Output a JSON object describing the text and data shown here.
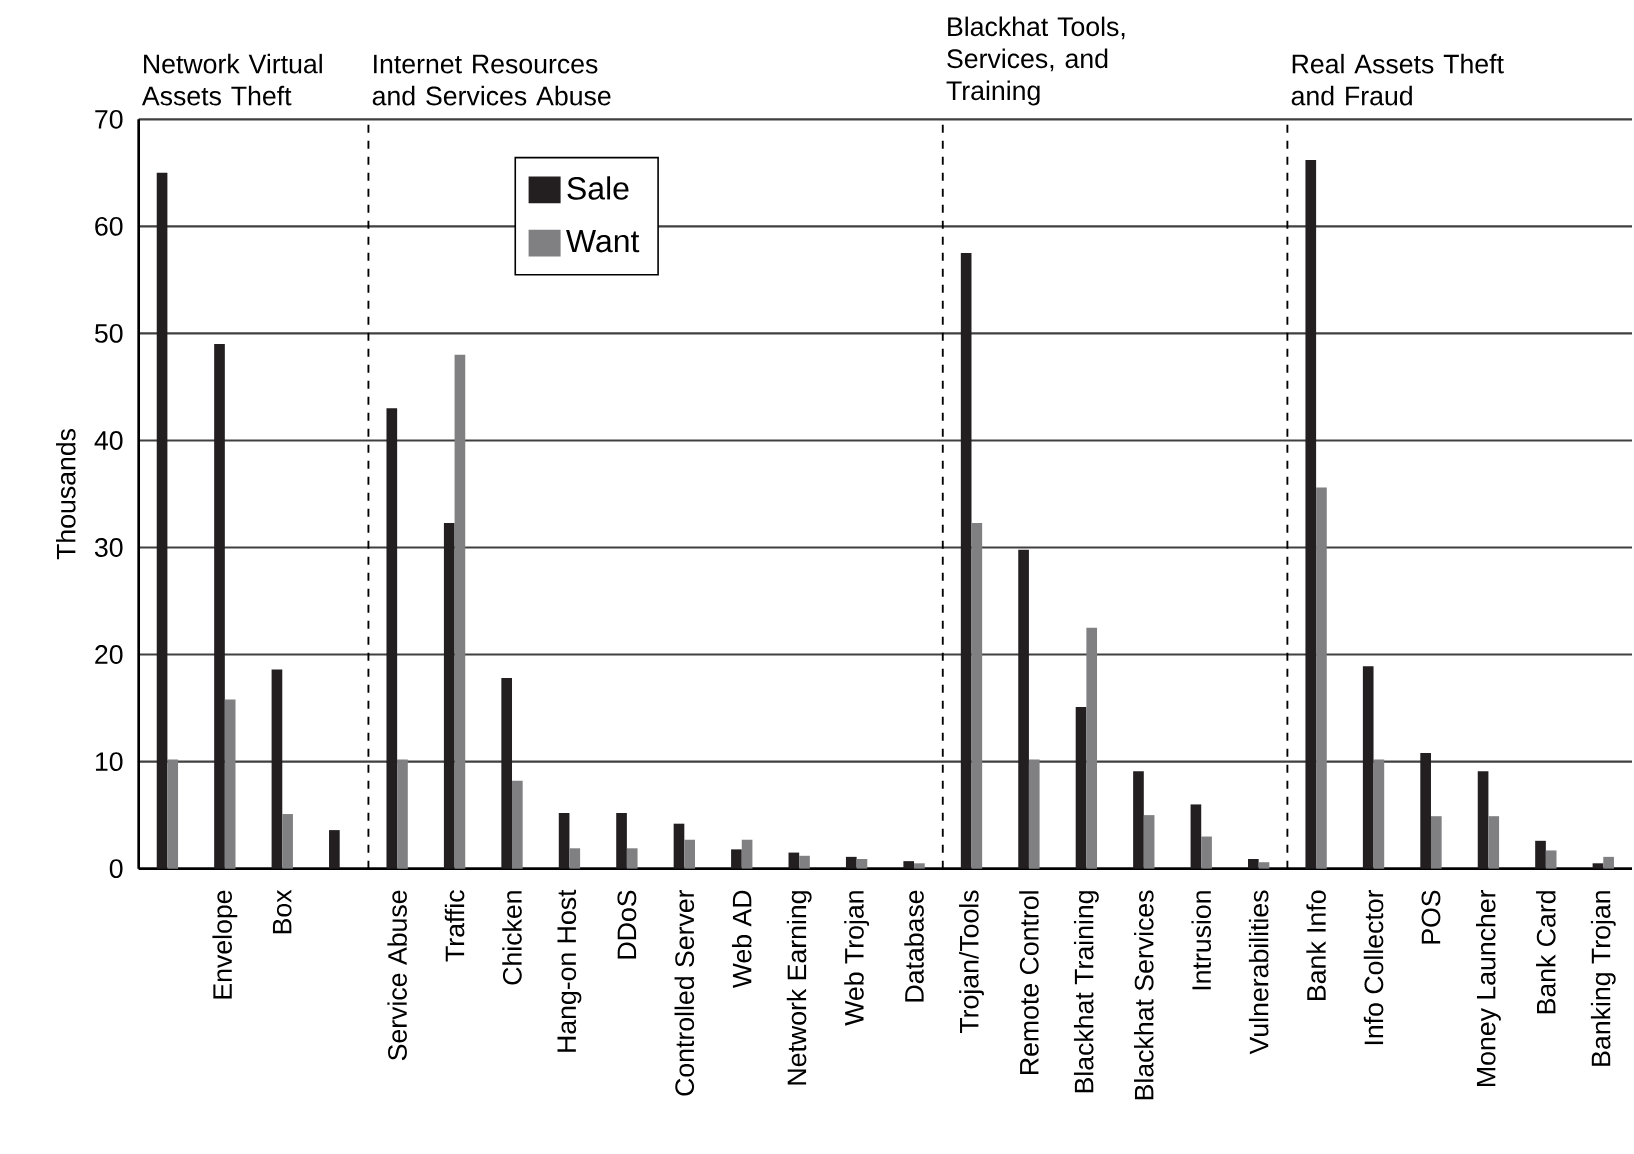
{
  "chart_data": {
    "type": "bar",
    "ylabel": "Thousands",
    "categories": [
      null,
      "Envelope",
      "Box",
      null,
      "Service Abuse",
      "Traffic",
      "Chicken",
      "Hang-on Host",
      "DDoS",
      "Controlled Server",
      "Web AD",
      "Network Earning",
      "Web Trojan",
      "Database",
      "Trojan/Tools",
      "Remote Control",
      "Blackhat Training",
      "Blackhat Services",
      "Intrusion",
      "Vulnerabilities",
      "Bank Info",
      "Info Collector",
      "POS",
      "Money Launcher",
      "Bank Card",
      "Banking Trojan"
    ],
    "series": [
      {
        "name": "Sale",
        "color": "#231f20",
        "values": [
          65,
          49,
          18.6,
          3.6,
          43,
          32.3,
          17.8,
          5.2,
          5.2,
          4.2,
          1.8,
          1.5,
          1.1,
          0.7,
          57.5,
          29.8,
          15.1,
          9.1,
          6,
          0.9,
          66.2,
          18.9,
          10.8,
          9.1,
          2.6,
          0.5
        ]
      },
      {
        "name": "Want",
        "color": "#808083",
        "values": [
          10.2,
          15.8,
          5.1,
          null,
          10.2,
          48,
          8.2,
          1.9,
          1.9,
          2.7,
          2.7,
          1.2,
          0.9,
          0.5,
          32.3,
          10.2,
          22.5,
          5,
          3,
          0.6,
          35.6,
          10.2,
          4.9,
          4.9,
          1.7,
          1.1
        ]
      }
    ],
    "ylim": [
      0,
      70
    ],
    "yticks": [
      0,
      10,
      20,
      30,
      40,
      50,
      60,
      70
    ],
    "grid": "y",
    "legend": "top",
    "annotations": [
      "Network Virtual Assets Theft",
      "Internet Resources and Services Abuse",
      "Blackhat Tools, Services, and Training",
      "Real Assets Theft and Fraud"
    ]
  }
}
